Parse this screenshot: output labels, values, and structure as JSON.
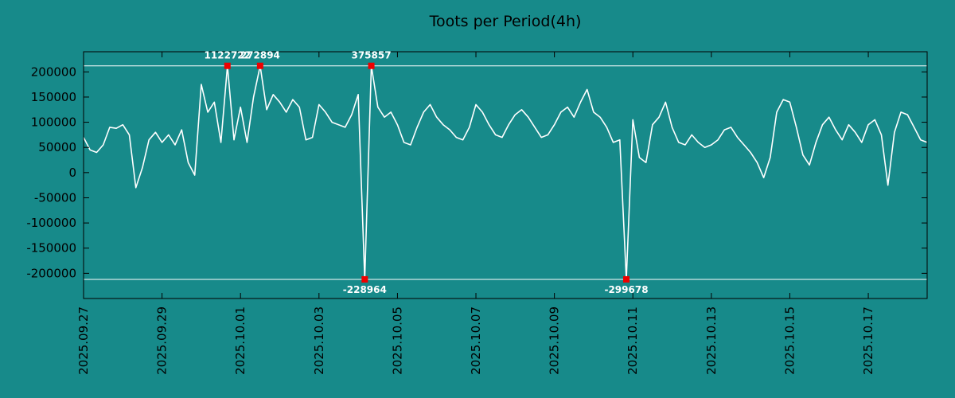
{
  "title": "Toots per Period(4h)",
  "colors": {
    "background": "#178a8a",
    "line": "#ffffff",
    "clip_line": "#ffffff",
    "border": "#000000",
    "text": "#000000",
    "marker": "#ee0000",
    "annotation_text": "#ffffff"
  },
  "chart_data": {
    "type": "line",
    "title": "Toots per Period(4h)",
    "xlabel": "",
    "ylabel": "",
    "grid": false,
    "legend": null,
    "x_start": "2025-09-27 00:00",
    "x_step_hours": 4,
    "ylim": [
      -250000,
      240000
    ],
    "clip": 212000,
    "y_ticks": [
      200000,
      150000,
      100000,
      50000,
      0,
      -50000,
      -100000,
      -150000,
      -200000
    ],
    "x_ticks": [
      {
        "index": 0,
        "label": "2025.09.27"
      },
      {
        "index": 12,
        "label": "2025.09.29"
      },
      {
        "index": 24,
        "label": "2025.10.01"
      },
      {
        "index": 36,
        "label": "2025.10.03"
      },
      {
        "index": 48,
        "label": "2025.10.05"
      },
      {
        "index": 60,
        "label": "2025.10.07"
      },
      {
        "index": 72,
        "label": "2025.10.09"
      },
      {
        "index": 84,
        "label": "2025.10.11"
      },
      {
        "index": 96,
        "label": "2025.10.13"
      },
      {
        "index": 108,
        "label": "2025.10.15"
      },
      {
        "index": 120,
        "label": "2025.10.17"
      }
    ],
    "annotations": [
      {
        "index": 22,
        "value": 1122722,
        "label": "1122722"
      },
      {
        "index": 27,
        "value": 272894,
        "label": "272894"
      },
      {
        "index": 43,
        "value": -228964,
        "label": "-228964"
      },
      {
        "index": 44,
        "value": 375857,
        "label": "375857"
      },
      {
        "index": 83,
        "value": -299678,
        "label": "-299678"
      }
    ],
    "values": [
      70000,
      45000,
      40000,
      55000,
      90000,
      88000,
      95000,
      75000,
      -30000,
      10000,
      65000,
      80000,
      60000,
      75000,
      55000,
      85000,
      20000,
      -5000,
      175000,
      120000,
      140000,
      60000,
      1122722,
      65000,
      130000,
      60000,
      150000,
      272894,
      125000,
      155000,
      140000,
      120000,
      145000,
      130000,
      65000,
      70000,
      135000,
      120000,
      100000,
      95000,
      90000,
      115000,
      155000,
      -228964,
      375857,
      130000,
      110000,
      120000,
      95000,
      60000,
      55000,
      90000,
      120000,
      135000,
      110000,
      95000,
      85000,
      70000,
      65000,
      90000,
      135000,
      120000,
      95000,
      75000,
      70000,
      95000,
      115000,
      125000,
      110000,
      90000,
      70000,
      75000,
      95000,
      120000,
      130000,
      110000,
      140000,
      165000,
      120000,
      110000,
      90000,
      60000,
      65000,
      -299678,
      105000,
      30000,
      20000,
      95000,
      110000,
      140000,
      90000,
      60000,
      55000,
      75000,
      60000,
      50000,
      55000,
      65000,
      85000,
      90000,
      70000,
      55000,
      40000,
      20000,
      -10000,
      30000,
      120000,
      145000,
      140000,
      90000,
      35000,
      15000,
      60000,
      95000,
      110000,
      85000,
      65000,
      95000,
      80000,
      60000,
      95000,
      105000,
      75000,
      -25000,
      80000,
      120000,
      115000,
      90000,
      65000,
      60000
    ]
  }
}
